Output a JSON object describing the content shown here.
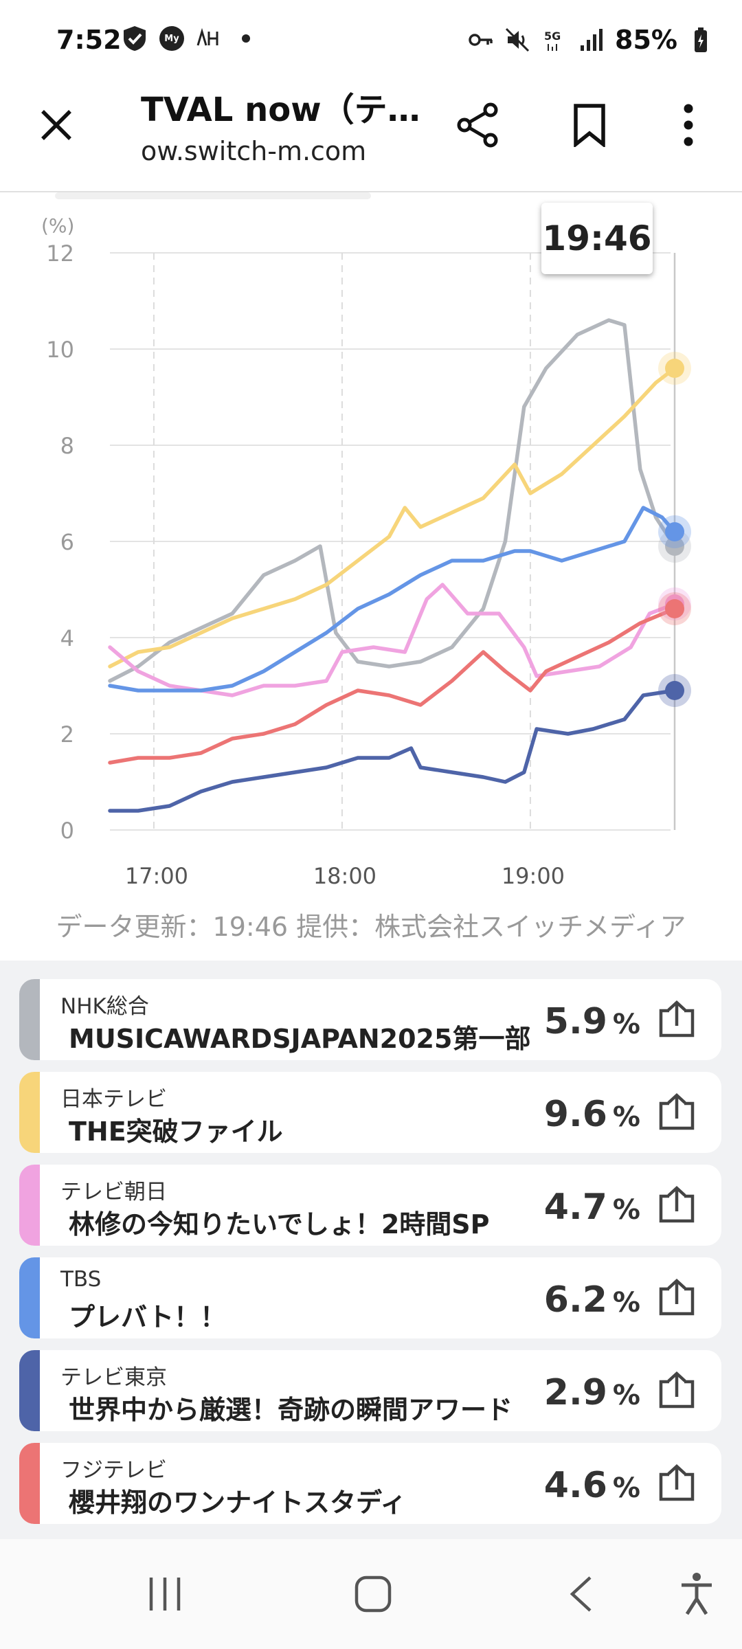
{
  "status_bar": {
    "time": "7:52",
    "icons": [
      "shield-check-icon",
      "my-docomo-icon",
      "nhk-app-icon",
      "dot-icon"
    ],
    "right_icons": [
      "key-icon",
      "mute-icon",
      "5g-icon",
      "signal-icon"
    ],
    "battery": "85%"
  },
  "browser": {
    "title": "TVAL now（テ…",
    "url": "ow.switch-m.com",
    "icons": [
      "close-icon",
      "share-icon",
      "bookmark-icon",
      "more-icon"
    ]
  },
  "chart": {
    "tooltip_time": "19:46",
    "footer_note": "データ更新：19:46 提供：株式会社スイッチメディア"
  },
  "chart_data": {
    "type": "line",
    "ylabel": "(%)",
    "ylim": [
      0,
      12
    ],
    "yticks": [
      0,
      2,
      4,
      6,
      8,
      10,
      12
    ],
    "xlim": [
      "16:46",
      "19:46"
    ],
    "xticks": [
      "17:00",
      "18:00",
      "19:00"
    ],
    "grid": true,
    "series": [
      {
        "name": "NHK総合",
        "color": "#b3b7bd",
        "points": [
          [
            "16:46",
            3.1
          ],
          [
            "16:55",
            3.4
          ],
          [
            "17:05",
            3.9
          ],
          [
            "17:15",
            4.2
          ],
          [
            "17:25",
            4.5
          ],
          [
            "17:35",
            5.3
          ],
          [
            "17:45",
            5.6
          ],
          [
            "17:53",
            5.9
          ],
          [
            "17:58",
            4.1
          ],
          [
            "18:05",
            3.5
          ],
          [
            "18:15",
            3.4
          ],
          [
            "18:25",
            3.5
          ],
          [
            "18:35",
            3.8
          ],
          [
            "18:45",
            4.6
          ],
          [
            "18:52",
            6.0
          ],
          [
            "18:58",
            8.8
          ],
          [
            "19:05",
            9.6
          ],
          [
            "19:15",
            10.3
          ],
          [
            "19:25",
            10.6
          ],
          [
            "19:30",
            10.5
          ],
          [
            "19:35",
            7.5
          ],
          [
            "19:40",
            6.5
          ],
          [
            "19:46",
            5.9
          ]
        ]
      },
      {
        "name": "日本テレビ",
        "color": "#f7d57a",
        "points": [
          [
            "16:46",
            3.4
          ],
          [
            "16:55",
            3.7
          ],
          [
            "17:05",
            3.8
          ],
          [
            "17:15",
            4.1
          ],
          [
            "17:25",
            4.4
          ],
          [
            "17:35",
            4.6
          ],
          [
            "17:45",
            4.8
          ],
          [
            "17:55",
            5.1
          ],
          [
            "18:05",
            5.6
          ],
          [
            "18:15",
            6.1
          ],
          [
            "18:20",
            6.7
          ],
          [
            "18:25",
            6.3
          ],
          [
            "18:35",
            6.6
          ],
          [
            "18:45",
            6.9
          ],
          [
            "18:55",
            7.6
          ],
          [
            "19:00",
            7.0
          ],
          [
            "19:10",
            7.4
          ],
          [
            "19:20",
            8.0
          ],
          [
            "19:30",
            8.6
          ],
          [
            "19:40",
            9.3
          ],
          [
            "19:46",
            9.6
          ]
        ]
      },
      {
        "name": "テレビ朝日",
        "color": "#f0a3e0",
        "points": [
          [
            "16:46",
            3.8
          ],
          [
            "16:55",
            3.3
          ],
          [
            "17:05",
            3.0
          ],
          [
            "17:15",
            2.9
          ],
          [
            "17:25",
            2.8
          ],
          [
            "17:35",
            3.0
          ],
          [
            "17:45",
            3.0
          ],
          [
            "17:55",
            3.1
          ],
          [
            "18:00",
            3.7
          ],
          [
            "18:10",
            3.8
          ],
          [
            "18:20",
            3.7
          ],
          [
            "18:27",
            4.8
          ],
          [
            "18:32",
            5.1
          ],
          [
            "18:40",
            4.5
          ],
          [
            "18:50",
            4.5
          ],
          [
            "18:58",
            3.8
          ],
          [
            "19:02",
            3.2
          ],
          [
            "19:12",
            3.3
          ],
          [
            "19:22",
            3.4
          ],
          [
            "19:32",
            3.8
          ],
          [
            "19:38",
            4.5
          ],
          [
            "19:46",
            4.7
          ]
        ]
      },
      {
        "name": "TBS",
        "color": "#6495e6",
        "points": [
          [
            "16:46",
            3.0
          ],
          [
            "16:55",
            2.9
          ],
          [
            "17:05",
            2.9
          ],
          [
            "17:15",
            2.9
          ],
          [
            "17:25",
            3.0
          ],
          [
            "17:35",
            3.3
          ],
          [
            "17:45",
            3.7
          ],
          [
            "17:55",
            4.1
          ],
          [
            "18:05",
            4.6
          ],
          [
            "18:15",
            4.9
          ],
          [
            "18:25",
            5.3
          ],
          [
            "18:35",
            5.6
          ],
          [
            "18:45",
            5.6
          ],
          [
            "18:55",
            5.8
          ],
          [
            "19:00",
            5.8
          ],
          [
            "19:10",
            5.6
          ],
          [
            "19:20",
            5.8
          ],
          [
            "19:30",
            6.0
          ],
          [
            "19:36",
            6.7
          ],
          [
            "19:42",
            6.5
          ],
          [
            "19:46",
            6.2
          ]
        ]
      },
      {
        "name": "テレビ東京",
        "color": "#4e64a8",
        "points": [
          [
            "16:46",
            0.4
          ],
          [
            "16:55",
            0.4
          ],
          [
            "17:05",
            0.5
          ],
          [
            "17:15",
            0.8
          ],
          [
            "17:25",
            1.0
          ],
          [
            "17:35",
            1.1
          ],
          [
            "17:45",
            1.2
          ],
          [
            "17:55",
            1.3
          ],
          [
            "18:05",
            1.5
          ],
          [
            "18:15",
            1.5
          ],
          [
            "18:22",
            1.7
          ],
          [
            "18:25",
            1.3
          ],
          [
            "18:35",
            1.2
          ],
          [
            "18:45",
            1.1
          ],
          [
            "18:52",
            1.0
          ],
          [
            "18:58",
            1.2
          ],
          [
            "19:02",
            2.1
          ],
          [
            "19:12",
            2.0
          ],
          [
            "19:20",
            2.1
          ],
          [
            "19:30",
            2.3
          ],
          [
            "19:36",
            2.8
          ],
          [
            "19:46",
            2.9
          ]
        ]
      },
      {
        "name": "フジテレビ",
        "color": "#ec7474",
        "points": [
          [
            "16:46",
            1.4
          ],
          [
            "16:55",
            1.5
          ],
          [
            "17:05",
            1.5
          ],
          [
            "17:15",
            1.6
          ],
          [
            "17:25",
            1.9
          ],
          [
            "17:35",
            2.0
          ],
          [
            "17:45",
            2.2
          ],
          [
            "17:55",
            2.6
          ],
          [
            "18:05",
            2.9
          ],
          [
            "18:15",
            2.8
          ],
          [
            "18:25",
            2.6
          ],
          [
            "18:35",
            3.1
          ],
          [
            "18:45",
            3.7
          ],
          [
            "18:52",
            3.3
          ],
          [
            "19:00",
            2.9
          ],
          [
            "19:05",
            3.3
          ],
          [
            "19:15",
            3.6
          ],
          [
            "19:25",
            3.9
          ],
          [
            "19:35",
            4.3
          ],
          [
            "19:46",
            4.6
          ]
        ]
      }
    ]
  },
  "channels": [
    {
      "station": "NHK総合",
      "program": "MUSICAWARDSJAPAN2025第一部",
      "rating": "5.9",
      "unit": "%",
      "color": "#b3b7bd"
    },
    {
      "station": "日本テレビ",
      "program": "THE突破ファイル",
      "rating": "9.6",
      "unit": "%",
      "color": "#f7d57a"
    },
    {
      "station": "テレビ朝日",
      "program": "林修の今知りたいでしょ！2時間SP",
      "rating": "4.7",
      "unit": "%",
      "color": "#f0a3e0"
    },
    {
      "station": "TBS",
      "program": "プレバト！！",
      "rating": "6.2",
      "unit": "%",
      "color": "#6495e6"
    },
    {
      "station": "テレビ東京",
      "program": "世界中から厳選！奇跡の瞬間アワード",
      "rating": "2.9",
      "unit": "%",
      "color": "#4e64a8"
    },
    {
      "station": "フジテレビ",
      "program": "櫻井翔のワンナイトスタディ",
      "rating": "4.6",
      "unit": "%",
      "color": "#ec7474"
    }
  ],
  "nav_bar": {
    "icons": [
      "recent-apps-icon",
      "home-icon",
      "back-icon",
      "accessibility-icon"
    ]
  }
}
